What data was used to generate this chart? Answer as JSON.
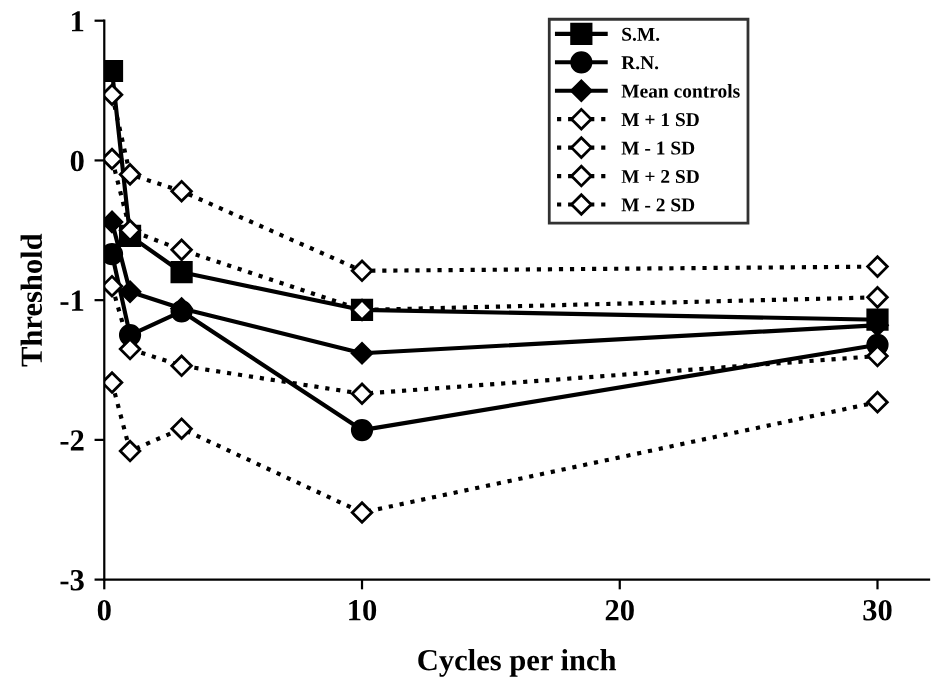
{
  "chart_data": {
    "type": "line",
    "xlabel": "Cycles per inch",
    "ylabel": "Threshold",
    "xlim": [
      0,
      32
    ],
    "xticks": [
      0,
      10,
      20,
      30
    ],
    "ylim": [
      -3,
      1
    ],
    "yticks": [
      -3,
      -2,
      -1,
      0,
      1
    ],
    "grid": false,
    "legend": "top",
    "line_style": "solid",
    "series": [
      {
        "name": "S.M.",
        "color": "#000000",
        "marker": "square",
        "x": [
          0.3,
          1,
          3,
          10,
          30
        ],
        "values": [
          0.64,
          -0.54,
          -0.8,
          -1.07,
          -1.14
        ]
      },
      {
        "name": "R.N.",
        "color": "#000000",
        "marker": "circle",
        "x": [
          0.3,
          1,
          3,
          10,
          30
        ],
        "values": [
          -0.67,
          -1.25,
          -1.08,
          -1.93,
          -1.32
        ]
      },
      {
        "name": "Mean controls",
        "color": "#000000",
        "marker": "diamond",
        "x": [
          0.3,
          1,
          3,
          10,
          30
        ],
        "values": [
          -0.44,
          -0.94,
          -1.06,
          -1.38,
          -1.18
        ]
      },
      {
        "name": "M + 1 SD",
        "color": "#ffffff",
        "marker": "diamond",
        "line_style": "dotted",
        "x": [
          0.3,
          1,
          3,
          10,
          30
        ],
        "values": [
          0.01,
          -0.5,
          -0.64,
          -1.07,
          -0.98
        ]
      },
      {
        "name": "M - 1 SD",
        "color": "#ffffff",
        "marker": "diamond",
        "line_style": "dotted",
        "x": [
          0.3,
          1,
          3,
          10,
          30
        ],
        "values": [
          -0.9,
          -1.35,
          -1.47,
          -1.67,
          -1.4
        ]
      },
      {
        "name": "M + 2 SD",
        "color": "#ffffff",
        "marker": "diamond",
        "line_style": "dotted",
        "x": [
          0.3,
          1,
          3,
          10,
          30
        ],
        "values": [
          0.47,
          -0.1,
          -0.22,
          -0.79,
          -0.76
        ]
      },
      {
        "name": "M - 2 SD",
        "color": "#ffffff",
        "marker": "diamond",
        "line_style": "dotted",
        "x": [
          0.3,
          1,
          3,
          10,
          30
        ],
        "values": [
          -1.59,
          -2.08,
          -1.92,
          -2.52,
          -1.73
        ]
      }
    ]
  }
}
